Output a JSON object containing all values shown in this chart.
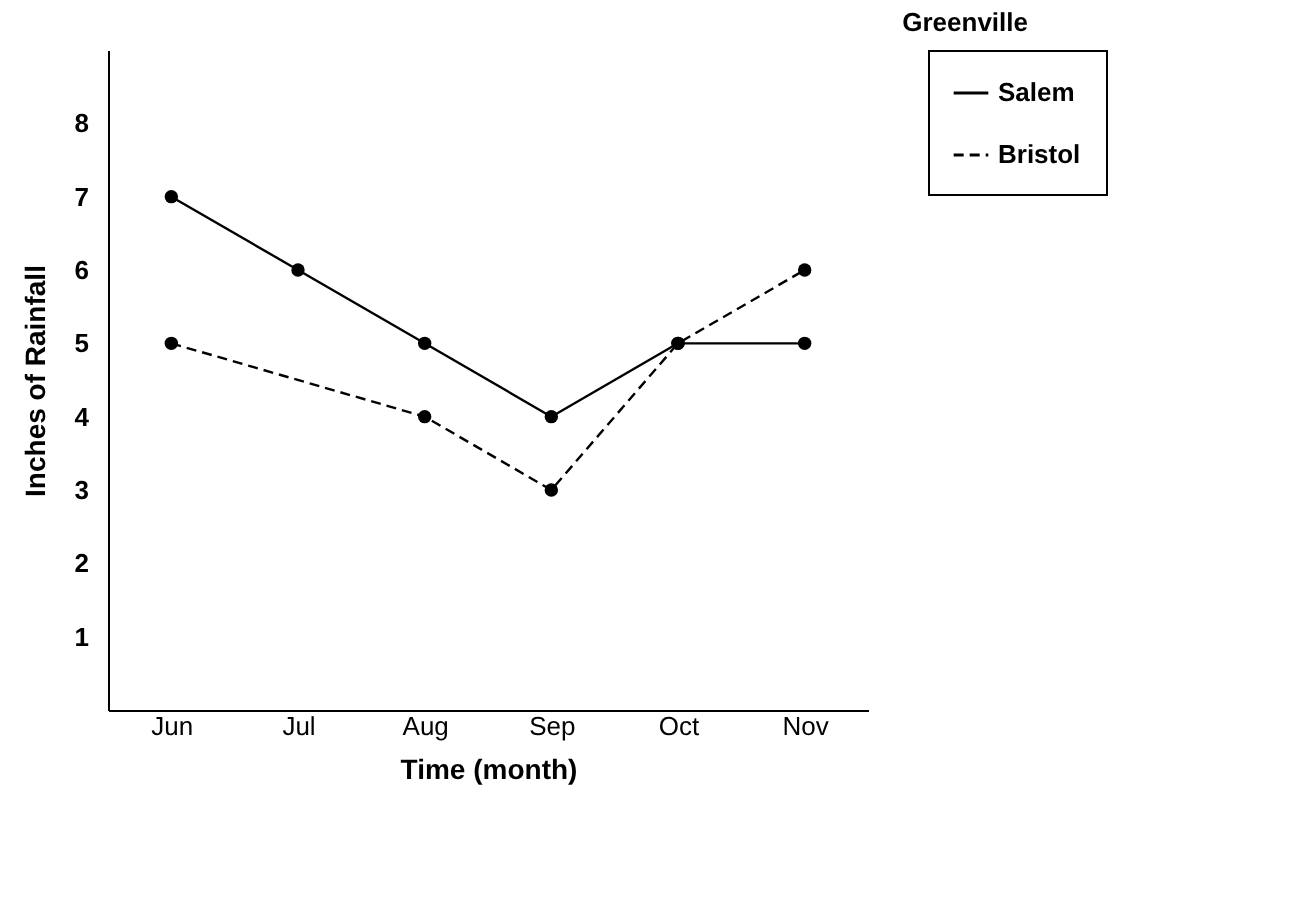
{
  "chart_data": {
    "type": "line",
    "title": "Greenville",
    "xlabel": "Time (month)",
    "ylabel": "Inches of Rainfall",
    "categories": [
      "Jun",
      "Jul",
      "Aug",
      "Sep",
      "Oct",
      "Nov"
    ],
    "series": [
      {
        "name": "Salem",
        "color": "#000000",
        "line_style": "solid",
        "values": [
          7,
          6,
          5,
          4,
          5,
          5
        ]
      },
      {
        "name": "Bristol",
        "color": "#000000",
        "line_style": "dashed",
        "values": [
          5,
          null,
          4,
          3,
          5,
          6
        ]
      }
    ],
    "ylim": [
      0,
      9
    ],
    "yticks": [
      1,
      2,
      3,
      4,
      5,
      6,
      7,
      8
    ],
    "grid": false,
    "legend": "right",
    "marker": "circle"
  }
}
